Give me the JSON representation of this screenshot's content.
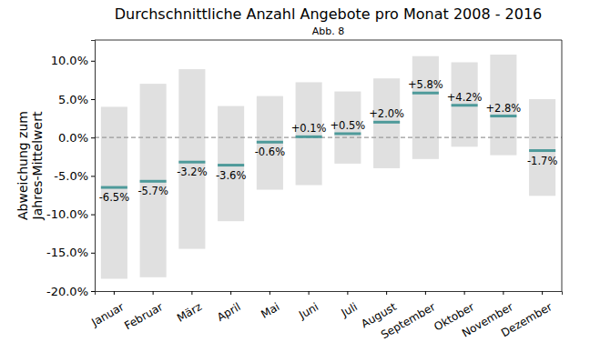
{
  "chart_data": {
    "type": "range_bar",
    "title": "Durchschnittliche Anzahl Angebote pro Monat 2008 - 2016",
    "subtitle": "Abb. 8",
    "y_label": "Abweichung zum\nJahres-Mittelwert",
    "categories": [
      "Januar",
      "Februar",
      "März",
      "April",
      "Mai",
      "Juni",
      "Juli",
      "August",
      "September",
      "Oktober",
      "November",
      "Dezember"
    ],
    "values": [
      -6.5,
      -5.7,
      -3.2,
      -3.6,
      -0.6,
      0.1,
      0.5,
      2.0,
      5.8,
      4.2,
      2.8,
      -1.7
    ],
    "value_labels": [
      "-6.5%",
      "-5.7%",
      "-3.2%",
      "-3.6%",
      "-0.6%",
      "+0.1%",
      "+0.5%",
      "+2.0%",
      "+5.8%",
      "+4.2%",
      "+2.8%",
      "-1.7%"
    ],
    "low": [
      -18.4,
      -18.2,
      -14.5,
      -10.9,
      -6.8,
      -6.2,
      -3.4,
      -4.0,
      -2.8,
      -1.2,
      -2.3,
      -7.6
    ],
    "high": [
      4.0,
      7.0,
      8.9,
      4.1,
      5.4,
      7.2,
      6.0,
      7.7,
      10.6,
      9.8,
      10.8,
      5.0
    ],
    "baseline": 0,
    "color": "#4e9a9a",
    "data_labels": true,
    "ylim": [
      -20,
      12.7
    ],
    "yticks": [
      {
        "value": -20,
        "label": "-20.0%"
      },
      {
        "value": -15,
        "label": "-15.0%"
      },
      {
        "value": -10,
        "label": "-10.0%"
      },
      {
        "value": -5,
        "label": "-5.0%"
      },
      {
        "value": 0,
        "label": "0.0%"
      },
      {
        "value": 5,
        "label": "5.0%"
      },
      {
        "value": 10,
        "label": "10.0%"
      }
    ]
  }
}
